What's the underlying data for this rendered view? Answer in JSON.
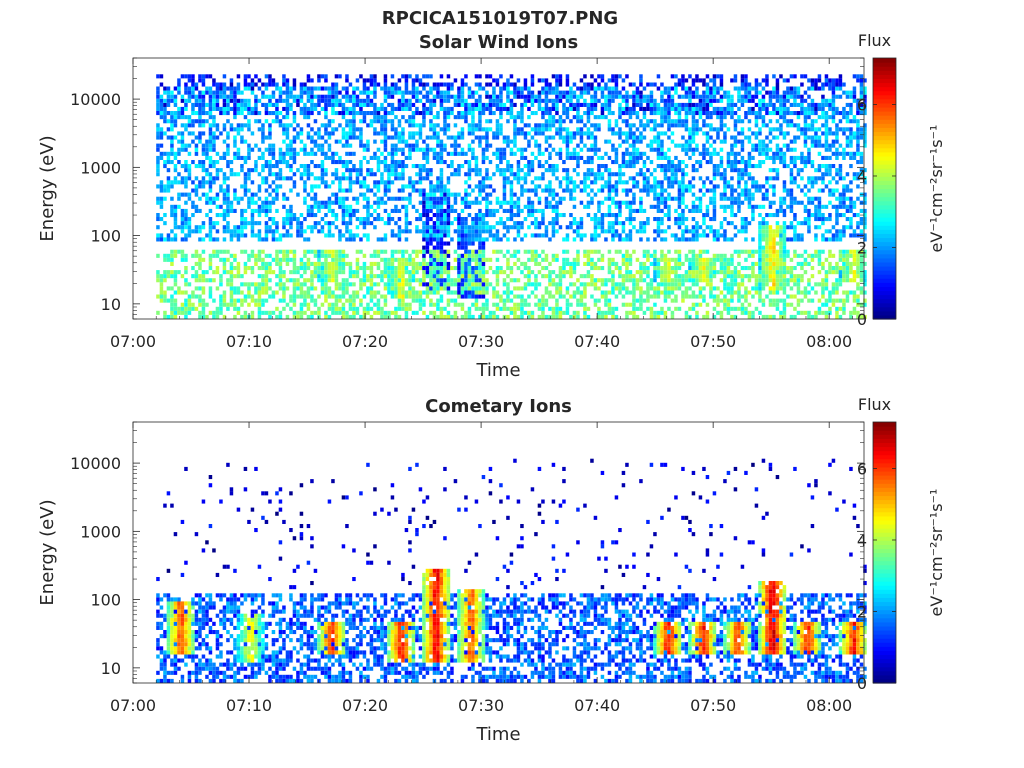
{
  "figure_title": "RPCICA151019T07.PNG",
  "colormap": [
    "#00007f",
    "#0000ff",
    "#007fff",
    "#00ffff",
    "#7fff7f",
    "#ffff00",
    "#ff7f00",
    "#ff0000",
    "#7f0000"
  ],
  "chart_data": [
    {
      "type": "heatmap",
      "title": "Solar Wind Ions",
      "xlabel": "Time",
      "ylabel": "Energy (eV)",
      "x_ticks": [
        "07:00",
        "07:10",
        "07:20",
        "07:30",
        "07:40",
        "07:50",
        "08:00"
      ],
      "y_ticks": [
        "10",
        "100",
        "1000",
        "10000"
      ],
      "y_scale": "log",
      "xlim": [
        "07:00",
        "08:03"
      ],
      "ylim": [
        6,
        40000
      ],
      "colorbar": {
        "title": "Flux",
        "label": "eV⁻¹cm⁻²sr⁻¹s⁻¹",
        "ticks": [
          "0",
          "2",
          "4",
          "6"
        ],
        "range": [
          0,
          7.3
        ]
      },
      "data_start": "07:02",
      "features": [
        {
          "type": "band",
          "e_min": 80,
          "e_max": 15000,
          "level": 2.1,
          "density": 0.5
        },
        {
          "type": "band",
          "e_min": 6000,
          "e_max": 22000,
          "level": 1.1,
          "density": 0.45
        },
        {
          "type": "band",
          "e_min": 6,
          "e_max": 60,
          "level": 3.5,
          "density": 0.55
        },
        {
          "type": "burst",
          "time": "07:17",
          "e_min": 20,
          "e_max": 60,
          "level": 4.4
        },
        {
          "type": "burst",
          "time": "07:23",
          "e_min": 12,
          "e_max": 50,
          "level": 4.5
        },
        {
          "type": "burst",
          "time": "07:26",
          "e_min": 15,
          "e_max": 400,
          "level": 1.3
        },
        {
          "type": "burst",
          "time": "07:29",
          "e_min": 12,
          "e_max": 200,
          "level": 1.8
        },
        {
          "type": "burst",
          "time": "07:46",
          "e_min": 20,
          "e_max": 50,
          "level": 4.4
        },
        {
          "type": "burst",
          "time": "07:49",
          "e_min": 20,
          "e_max": 50,
          "level": 4.6
        },
        {
          "type": "burst",
          "time": "07:55",
          "e_min": 15,
          "e_max": 150,
          "level": 4.8
        },
        {
          "type": "burst",
          "time": "08:02",
          "e_min": 20,
          "e_max": 60,
          "level": 4.4
        }
      ]
    },
    {
      "type": "heatmap",
      "title": "Cometary Ions",
      "xlabel": "Time",
      "ylabel": "Energy (eV)",
      "x_ticks": [
        "07:00",
        "07:10",
        "07:20",
        "07:30",
        "07:40",
        "07:50",
        "08:00"
      ],
      "y_ticks": [
        "10",
        "100",
        "1000",
        "10000"
      ],
      "y_scale": "log",
      "xlim": [
        "07:00",
        "08:03"
      ],
      "ylim": [
        6,
        40000
      ],
      "colorbar": {
        "title": "Flux",
        "label": "eV⁻¹cm⁻²sr⁻¹s⁻¹",
        "ticks": [
          "0",
          "2",
          "4",
          "6"
        ],
        "range": [
          0,
          7.3
        ]
      },
      "data_start": "07:02",
      "features": [
        {
          "type": "band",
          "e_min": 6,
          "e_max": 130,
          "level": 1.6,
          "density": 0.55
        },
        {
          "type": "band",
          "e_min": 150,
          "e_max": 11000,
          "level": 0.6,
          "density": 0.04
        },
        {
          "type": "burst",
          "time": "07:04",
          "e_min": 15,
          "e_max": 100,
          "level": 6.0
        },
        {
          "type": "burst",
          "time": "07:10",
          "e_min": 12,
          "e_max": 60,
          "level": 4.5
        },
        {
          "type": "burst",
          "time": "07:17",
          "e_min": 15,
          "e_max": 45,
          "level": 6.2
        },
        {
          "type": "burst",
          "time": "07:23",
          "e_min": 12,
          "e_max": 45,
          "level": 6.4
        },
        {
          "type": "burst",
          "time": "07:26",
          "e_min": 12,
          "e_max": 300,
          "level": 6.6
        },
        {
          "type": "burst",
          "time": "07:29",
          "e_min": 12,
          "e_max": 150,
          "level": 5.8
        },
        {
          "type": "burst",
          "time": "07:46",
          "e_min": 15,
          "e_max": 50,
          "level": 6.3
        },
        {
          "type": "burst",
          "time": "07:49",
          "e_min": 15,
          "e_max": 50,
          "level": 6.3
        },
        {
          "type": "burst",
          "time": "07:52",
          "e_min": 15,
          "e_max": 50,
          "level": 6.0
        },
        {
          "type": "burst",
          "time": "07:55",
          "e_min": 15,
          "e_max": 200,
          "level": 6.8
        },
        {
          "type": "burst",
          "time": "07:58",
          "e_min": 15,
          "e_max": 50,
          "level": 6.2
        },
        {
          "type": "burst",
          "time": "08:02",
          "e_min": 15,
          "e_max": 50,
          "level": 6.3
        }
      ]
    }
  ]
}
